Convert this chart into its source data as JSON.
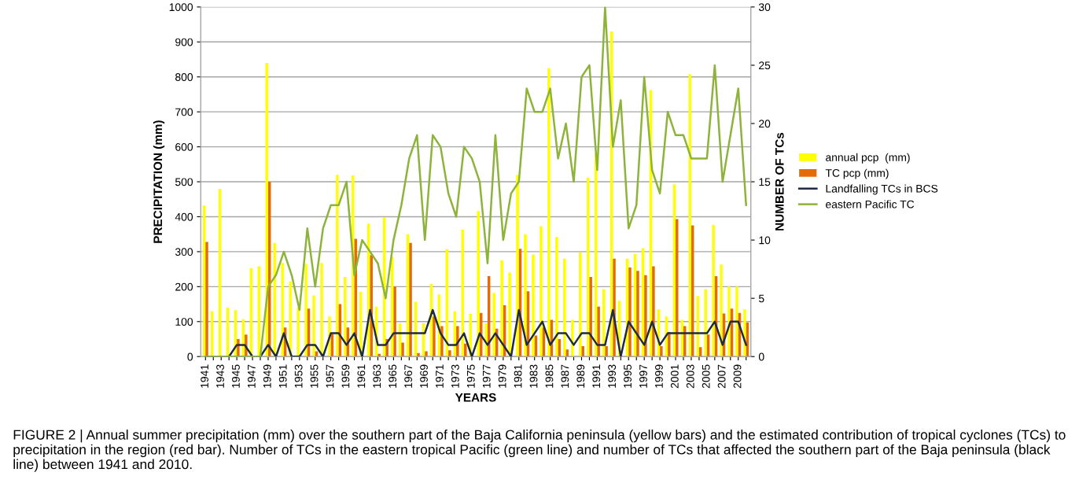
{
  "chart_data": {
    "type": "bar",
    "xlabel": "YEARS",
    "ylabel": "PRECIPITATION (mm)",
    "y2label": "NUMBER OF TCs",
    "categories": [
      "1941",
      null,
      "1943",
      null,
      "1945",
      null,
      "1947",
      null,
      "1949",
      null,
      "1951",
      null,
      "1953",
      null,
      "1955",
      null,
      "1957",
      null,
      "1959",
      null,
      "1961",
      null,
      "1963",
      null,
      "1965",
      null,
      "1967",
      null,
      "1969",
      null,
      "1971",
      null,
      "1973",
      null,
      "1975",
      null,
      "1977",
      null,
      "1979",
      null,
      "1981",
      null,
      "1983",
      null,
      "1985",
      null,
      "1987",
      null,
      "1989",
      null,
      "1991",
      null,
      "1993",
      null,
      "1995",
      null,
      "1997",
      null,
      "1999",
      null,
      "2001",
      null,
      "2003",
      null,
      "2005",
      null,
      "2007",
      null,
      "2009",
      null
    ],
    "series": [
      {
        "name": "annual pcp  (mm)",
        "color": "#ffff00",
        "values": [
          432,
          130,
          480,
          140,
          133,
          107,
          253,
          258,
          840,
          325,
          268,
          215,
          140,
          265,
          175,
          268,
          115,
          520,
          228,
          518,
          185,
          380,
          143,
          398,
          285,
          95,
          350,
          157,
          95,
          208,
          178,
          307,
          130,
          363,
          122,
          416,
          95,
          182,
          275,
          240,
          520,
          350,
          292,
          373,
          825,
          342,
          280,
          105,
          298,
          512,
          580,
          193,
          930,
          160,
          280,
          293,
          310,
          762,
          135,
          115,
          493,
          105,
          808,
          173,
          193,
          377,
          263,
          200,
          200,
          135
        ]
      },
      {
        "name": "TC pcp (mm)",
        "color": "#e36c09",
        "values": [
          328,
          0,
          0,
          0,
          50,
          63,
          0,
          0,
          500,
          0,
          83,
          0,
          0,
          137,
          15,
          0,
          65,
          150,
          83,
          337,
          0,
          290,
          8,
          50,
          200,
          40,
          325,
          10,
          15,
          115,
          87,
          18,
          87,
          37,
          0,
          125,
          230,
          80,
          147,
          0,
          308,
          187,
          60,
          83,
          105,
          50,
          20,
          0,
          30,
          228,
          143,
          30,
          280,
          0,
          255,
          245,
          233,
          258,
          30,
          70,
          393,
          87,
          375,
          27,
          63,
          230,
          123,
          137,
          125,
          97
        ]
      },
      {
        "name": "Landfalling TCs in BCS",
        "type": "line",
        "axis": "y2",
        "color": "#1f2a44",
        "values": [
          0,
          0,
          0,
          0,
          1,
          1,
          0,
          0,
          1,
          0,
          2,
          0,
          0,
          1,
          1,
          0,
          2,
          2,
          1,
          2,
          0,
          4,
          1,
          1,
          2,
          2,
          2,
          2,
          2,
          4,
          2,
          1,
          1,
          2,
          0,
          2,
          1,
          2,
          1,
          0,
          4,
          1,
          2,
          3,
          1,
          2,
          2,
          1,
          2,
          2,
          1,
          1,
          4,
          0,
          3,
          2,
          1,
          3,
          1,
          2,
          2,
          2,
          2,
          2,
          2,
          3,
          1,
          3,
          3,
          1
        ]
      },
      {
        "name": "eastern Pacific TC",
        "type": "line",
        "axis": "y2",
        "color": "#8db33b",
        "values": [
          0,
          0,
          0,
          0,
          0,
          0,
          0,
          0,
          6,
          7,
          9,
          7,
          4,
          11,
          6,
          11,
          13,
          13,
          15,
          7,
          10,
          9,
          8,
          5,
          10,
          13,
          17,
          19,
          10,
          19,
          18,
          14,
          12,
          18,
          17,
          15,
          8,
          19,
          10,
          14,
          15,
          23,
          21,
          21,
          23,
          17,
          20,
          15,
          24,
          25,
          16,
          30,
          18,
          22,
          11,
          13,
          24,
          16,
          14,
          21,
          19,
          19,
          17,
          17,
          17,
          25,
          15,
          19,
          23,
          13
        ]
      }
    ],
    "ylim": [
      0,
      1000
    ],
    "yticks": [
      0,
      100,
      200,
      300,
      400,
      500,
      600,
      700,
      800,
      900,
      1000
    ],
    "y2lim": [
      0,
      30
    ],
    "y2ticks": [
      0,
      5,
      10,
      15,
      20,
      25,
      30
    ],
    "grid": "y",
    "legend": "right",
    "line_style": "solid",
    "marker": "none",
    "annotations": [
      "FIGURE 2 | Annual summer precipitation (mm) over the southern part of the Baja California peninsula (yellow bars) and the estimated contribution of tropical cyclones (TCs) to precipitation in the region (red bar). Number of TCs in the eastern tropical Pacific (green line) and number of TCs that affected the southern part of the Baja peninsula (black line) between 1941 and 2010."
    ]
  }
}
